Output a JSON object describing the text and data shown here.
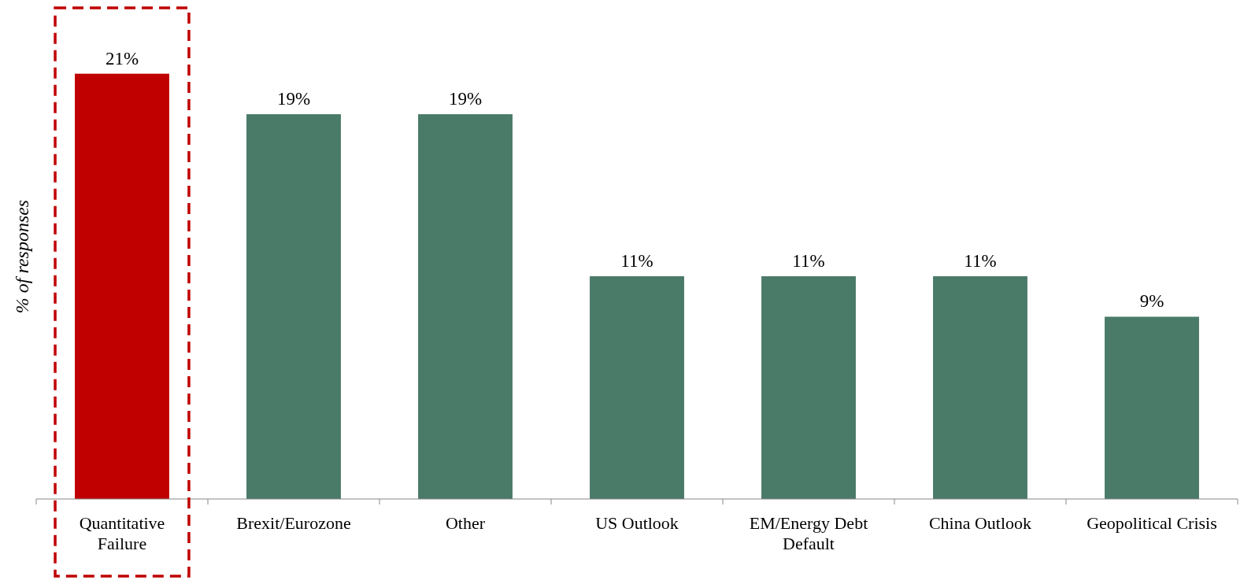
{
  "chart_data": {
    "type": "bar",
    "ylabel": "% of responses",
    "categories": [
      "Quantitative Failure",
      "Brexit/Eurozone",
      "Other",
      "US Outlook",
      "EM/Energy Debt Default",
      "China Outlook",
      "Geopolitical Crisis"
    ],
    "values": [
      21,
      19,
      19,
      11,
      11,
      11,
      9
    ],
    "value_labels": [
      "21%",
      "19%",
      "19%",
      "11%",
      "11%",
      "11%",
      "9%"
    ],
    "colors": [
      "#c00000",
      "#4a7a68",
      "#4a7a68",
      "#4a7a68",
      "#4a7a68",
      "#4a7a68",
      "#4a7a68"
    ]
  }
}
